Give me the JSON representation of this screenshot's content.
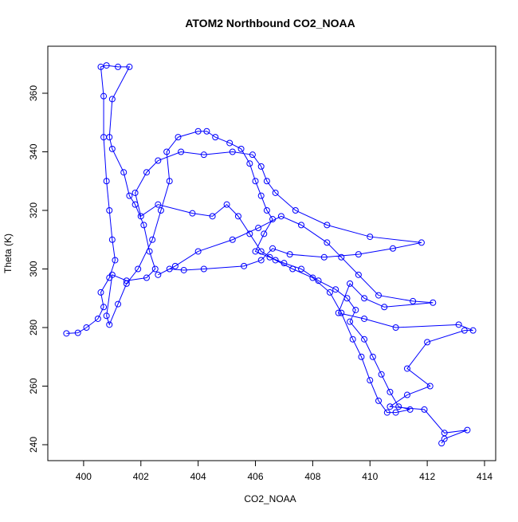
{
  "chart_data": {
    "type": "line",
    "markers": true,
    "color": "#0000ff",
    "title": "ATOM2 Northbound CO2_NOAA",
    "xlabel": "CO2_NOAA",
    "ylabel": "Theta (K)",
    "xlim": [
      398.75,
      414.39
    ],
    "ylim": [
      234.56,
      376.05
    ],
    "xticks": [
      400,
      402,
      404,
      406,
      408,
      410,
      412,
      414
    ],
    "yticks": [
      240,
      260,
      280,
      300,
      320,
      340,
      360
    ],
    "x": [
      399.4,
      399.8,
      400.1,
      400.5,
      400.7,
      400.6,
      400.9,
      401.1,
      401.0,
      400.9,
      400.8,
      400.7,
      400.7,
      400.6,
      400.8,
      401.2,
      401.6,
      401.0,
      400.9,
      401.0,
      401.4,
      401.6,
      401.8,
      402.1,
      402.3,
      402.5,
      402.2,
      401.5,
      401.0,
      400.8,
      400.9,
      401.2,
      401.5,
      401.9,
      402.4,
      402.7,
      403.0,
      402.9,
      403.3,
      404.0,
      404.3,
      404.6,
      405.1,
      405.5,
      405.8,
      406.0,
      406.2,
      406.4,
      406.6,
      406.3,
      406.0,
      406.5,
      407.0,
      407.6,
      408.2,
      408.8,
      409.2,
      409.5,
      409.3,
      409.8,
      410.1,
      410.4,
      410.7,
      411.0,
      411.4,
      410.9,
      410.6,
      410.3,
      410.0,
      409.7,
      409.4,
      409.0,
      408.6,
      408.0,
      407.3,
      406.7,
      406.2,
      405.8,
      405.4,
      405.0,
      404.5,
      403.8,
      402.6,
      402.0,
      401.8,
      402.2,
      402.6,
      403.4,
      404.2,
      405.2,
      405.9,
      406.2,
      406.4,
      406.7,
      407.4,
      408.5,
      410.0,
      411.8,
      410.8,
      409.6,
      408.4,
      407.2,
      406.6,
      406.2,
      405.6,
      404.2,
      403.5,
      403.0,
      402.6,
      403.2,
      404.0,
      405.2,
      406.1,
      406.9,
      407.6,
      408.5,
      409.0,
      409.6,
      410.3,
      411.5,
      412.2,
      410.5,
      409.8,
      409.3,
      408.9,
      409.8,
      410.9,
      413.1,
      413.6,
      413.3,
      412.0,
      411.3,
      412.1,
      411.3,
      410.7,
      411.9,
      412.6,
      413.4,
      412.6,
      412.5
    ],
    "values": [
      278,
      278.2,
      280,
      283,
      287,
      292,
      297,
      303,
      310,
      320,
      330,
      345,
      359,
      369,
      369.5,
      369,
      369,
      358,
      345,
      341,
      333,
      325,
      322,
      315,
      306,
      300,
      297,
      296,
      298,
      284,
      281,
      288,
      295,
      300,
      310,
      320,
      330,
      340,
      345,
      347,
      347,
      345,
      343,
      341,
      336,
      330,
      325,
      320,
      317,
      312,
      306,
      304,
      302,
      300,
      296,
      293,
      290,
      286,
      282,
      276,
      270,
      264,
      258,
      253,
      252,
      251,
      251,
      255,
      262,
      270,
      276,
      285,
      292,
      297,
      300,
      303,
      306,
      312,
      318,
      322,
      318,
      319,
      322,
      318,
      326,
      333,
      337,
      340,
      339,
      340,
      339,
      335,
      330,
      326,
      320,
      315,
      311,
      309,
      307,
      305,
      304,
      305,
      307,
      303,
      301,
      300,
      299.6,
      300,
      298,
      301,
      306,
      310,
      314,
      318,
      315,
      309,
      304,
      298,
      291,
      289,
      288.5,
      287,
      290,
      295,
      285,
      283,
      280,
      281,
      279,
      279,
      275,
      266,
      260,
      257,
      253,
      252,
      244,
      245,
      242,
      240.5
    ]
  }
}
